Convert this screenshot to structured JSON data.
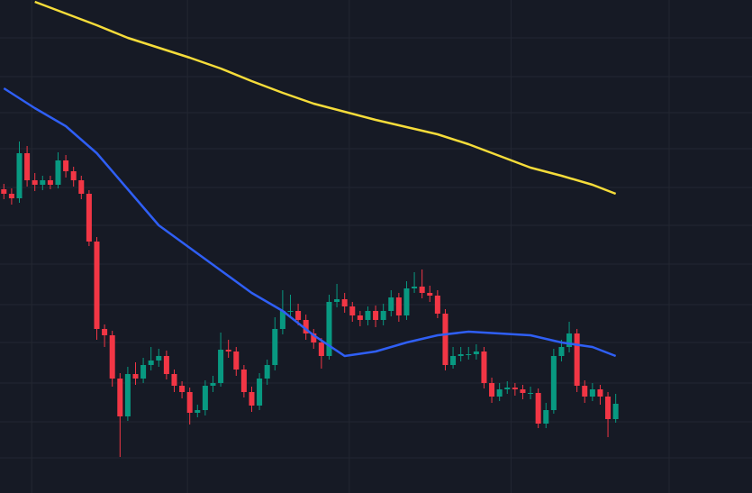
{
  "chart_data": {
    "type": "candlestick",
    "x": [
      0,
      1,
      2,
      3,
      4,
      5,
      6,
      7,
      8,
      9,
      10,
      11,
      12,
      13,
      14,
      15,
      16,
      17,
      18,
      19,
      20,
      21,
      22,
      23,
      24,
      25,
      26,
      27,
      28,
      29,
      30,
      31,
      32,
      33,
      34,
      35,
      36,
      37,
      38,
      39,
      40,
      41,
      42,
      43,
      44,
      45,
      46,
      47,
      48,
      49,
      50,
      51,
      52,
      53,
      54,
      55,
      56,
      57,
      58,
      59,
      60,
      61,
      62,
      63,
      64,
      65,
      66,
      67,
      68,
      69,
      70,
      71,
      72,
      73,
      74,
      75,
      76,
      77,
      78,
      79
    ],
    "open": [
      337,
      332,
      327,
      377,
      347,
      342,
      347,
      342,
      369,
      357,
      347,
      332,
      279,
      182,
      175,
      127,
      85,
      132,
      127,
      142,
      147,
      152,
      132,
      119,
      112,
      89,
      92,
      119,
      122,
      159,
      157,
      137,
      112,
      97,
      127,
      142,
      182,
      202,
      202,
      192,
      177,
      167,
      152,
      212,
      215,
      207,
      197,
      192,
      202,
      192,
      202,
      217,
      197,
      227,
      229,
      222,
      219,
      199,
      142,
      152,
      154,
      154,
      157,
      122,
      107,
      115,
      117,
      115,
      111,
      111,
      77,
      92,
      152,
      162,
      177,
      119,
      107,
      115,
      107,
      82
    ],
    "high": [
      343,
      338,
      390,
      385,
      355,
      352,
      352,
      378,
      375,
      362,
      352,
      336,
      284,
      187,
      180,
      133,
      140,
      145,
      150,
      162,
      160,
      158,
      137,
      124,
      117,
      98,
      125,
      130,
      178,
      170,
      162,
      142,
      118,
      133,
      148,
      195,
      225,
      220,
      210,
      198,
      182,
      172,
      220,
      232,
      222,
      212,
      202,
      207,
      208,
      210,
      225,
      222,
      235,
      245,
      248,
      230,
      225,
      204,
      162,
      162,
      162,
      165,
      162,
      128,
      122,
      124,
      122,
      120,
      118,
      116,
      100,
      160,
      170,
      190,
      182,
      125,
      122,
      120,
      112,
      110
    ],
    "low": [
      326,
      320,
      322,
      340,
      335,
      336,
      337,
      338,
      350,
      340,
      326,
      274,
      170,
      162,
      118,
      40,
      80,
      120,
      122,
      136,
      140,
      126,
      112,
      105,
      76,
      84,
      86,
      112,
      118,
      150,
      130,
      106,
      90,
      92,
      120,
      136,
      176,
      195,
      186,
      170,
      160,
      138,
      148,
      206,
      200,
      190,
      185,
      186,
      184,
      186,
      196,
      190,
      192,
      222,
      216,
      212,
      194,
      136,
      138,
      146,
      148,
      148,
      116,
      100,
      102,
      110,
      108,
      104,
      104,
      72,
      72,
      88,
      146,
      156,
      112,
      100,
      102,
      98,
      62,
      78
    ],
    "close": [
      332,
      327,
      377,
      347,
      342,
      347,
      342,
      369,
      357,
      347,
      332,
      279,
      182,
      175,
      127,
      85,
      132,
      127,
      142,
      147,
      152,
      132,
      119,
      112,
      89,
      92,
      119,
      122,
      159,
      157,
      137,
      112,
      97,
      127,
      142,
      182,
      202,
      202,
      192,
      177,
      167,
      152,
      212,
      215,
      207,
      197,
      192,
      202,
      192,
      202,
      217,
      197,
      227,
      229,
      222,
      219,
      199,
      142,
      152,
      154,
      154,
      157,
      122,
      107,
      115,
      117,
      115,
      111,
      111,
      77,
      92,
      152,
      162,
      177,
      119,
      107,
      115,
      107,
      82,
      99
    ],
    "up_color": "#089981",
    "down_color": "#f23645",
    "moving_averages": [
      {
        "color": "#f5dc3a",
        "x": [
          4,
          8,
          12,
          16,
          20,
          24,
          28,
          32,
          36,
          40,
          44,
          48,
          52,
          56,
          60,
          64,
          68,
          72,
          76,
          79
        ],
        "values": [
          545,
          532,
          519,
          505,
          494,
          483,
          471,
          457,
          444,
          432,
          423,
          414,
          406,
          398,
          387,
          374,
          361,
          352,
          342,
          332
        ]
      },
      {
        "color": "#2f5ff5",
        "x": [
          0,
          4,
          8,
          12,
          16,
          20,
          24,
          28,
          32,
          36,
          40,
          44,
          48,
          52,
          56,
          60,
          64,
          68,
          72,
          76,
          79
        ],
        "values": [
          449,
          427,
          407,
          377,
          337,
          297,
          272,
          247,
          222,
          202,
          175,
          152,
          157,
          167,
          175,
          179,
          177,
          175,
          167,
          162,
          152
        ]
      }
    ],
    "xlim": [
      -0.5,
      96.6
    ],
    "ylim": [
      0,
      547
    ],
    "xticks": [
      3.6,
      23.7,
      44.6,
      65.5,
      85.9
    ],
    "yticks": [
      39,
      79,
      122,
      167,
      209,
      254,
      297,
      339,
      382,
      422,
      462,
      505
    ],
    "grid": true
  }
}
